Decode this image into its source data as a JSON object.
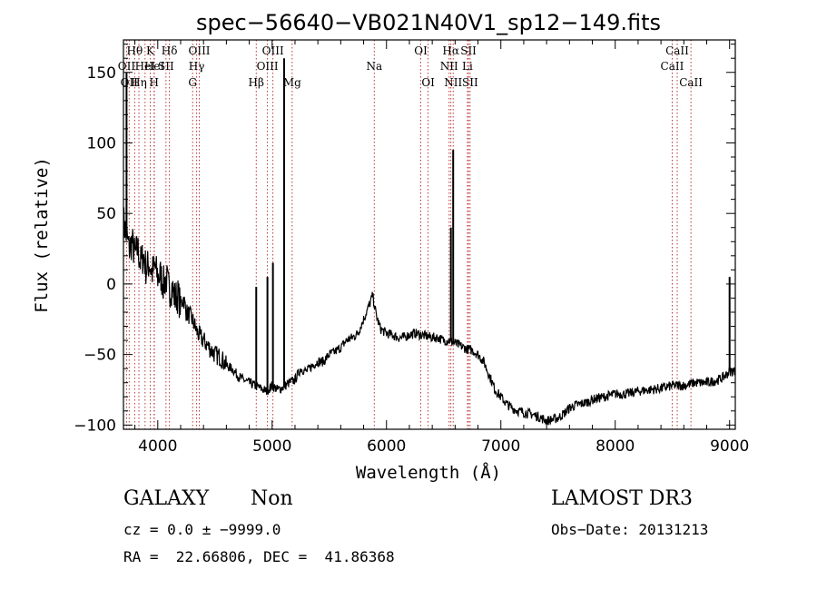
{
  "chart_data": {
    "type": "line",
    "title": "spec−56640−VB021N40V1_sp12−149.fits",
    "xlabel": "Wavelength (Å)",
    "ylabel": "Flux (relative)",
    "xlim": [
      3700,
      9050
    ],
    "ylim": [
      -103,
      173
    ],
    "xticks": [
      4000,
      5000,
      6000,
      7000,
      8000,
      9000
    ],
    "yticks": [
      -100,
      -50,
      0,
      50,
      100,
      150
    ],
    "xtick_labels": [
      "4000",
      "5000",
      "6000",
      "7000",
      "8000",
      "9000"
    ],
    "ytick_labels": [
      "−100",
      "−50",
      "0",
      "50",
      "100",
      "150"
    ],
    "grid": false,
    "spectrum": {
      "x": [
        3700,
        3725,
        3750,
        3775,
        3800,
        3825,
        3850,
        3875,
        3900,
        3925,
        3950,
        3975,
        4000,
        4025,
        4050,
        4075,
        4100,
        4125,
        4150,
        4175,
        4200,
        4225,
        4250,
        4275,
        4300,
        4325,
        4350,
        4375,
        4400,
        4450,
        4500,
        4550,
        4600,
        4650,
        4700,
        4750,
        4800,
        4850,
        4900,
        4950,
        5000,
        5050,
        5100,
        5150,
        5200,
        5250,
        5300,
        5350,
        5400,
        5450,
        5500,
        5550,
        5600,
        5650,
        5700,
        5750,
        5800,
        5850,
        5880,
        5900,
        5920,
        5950,
        6000,
        6050,
        6100,
        6150,
        6200,
        6250,
        6300,
        6350,
        6400,
        6450,
        6500,
        6550,
        6600,
        6650,
        6700,
        6750,
        6800,
        6850,
        6900,
        6950,
        7000,
        7050,
        7100,
        7150,
        7200,
        7250,
        7300,
        7350,
        7400,
        7450,
        7500,
        7550,
        7600,
        7650,
        7700,
        7750,
        7800,
        7900,
        8000,
        8100,
        8200,
        8300,
        8400,
        8500,
        8600,
        8700,
        8800,
        8900,
        8950,
        9000,
        9050
      ],
      "y": [
        45,
        35,
        25,
        30,
        20,
        25,
        15,
        20,
        10,
        15,
        8,
        12,
        5,
        6,
        0,
        4,
        -5,
        -2,
        -10,
        -8,
        -15,
        -10,
        -20,
        -22,
        -25,
        -30,
        -35,
        -38,
        -40,
        -45,
        -50,
        -52,
        -58,
        -60,
        -65,
        -68,
        -70,
        -72,
        -74,
        -76,
        -72,
        -75,
        -73,
        -70,
        -68,
        -60,
        -62,
        -58,
        -55,
        -55,
        -50,
        -48,
        -45,
        -40,
        -38,
        -35,
        -25,
        -15,
        -8,
        -18,
        -25,
        -32,
        -35,
        -36,
        -38,
        -38,
        -36,
        -35,
        -36,
        -37,
        -38,
        -38,
        -40,
        -40,
        -42,
        -44,
        -46,
        -47,
        -50,
        -55,
        -65,
        -75,
        -80,
        -85,
        -88,
        -90,
        -91,
        -92,
        -93,
        -95,
        -97,
        -96,
        -95,
        -92,
        -88,
        -86,
        -85,
        -84,
        -82,
        -80,
        -78,
        -78,
        -76,
        -75,
        -74,
        -72,
        -72,
        -70,
        -70,
        -68,
        -66,
        -62,
        -62
      ]
    },
    "emission_spikes": [
      {
        "x": 3727,
        "y": 150
      },
      {
        "x": 4861,
        "y": -2
      },
      {
        "x": 4959,
        "y": 5
      },
      {
        "x": 5007,
        "y": 15
      },
      {
        "x": 5105,
        "y": 160
      },
      {
        "x": 6563,
        "y": 40
      },
      {
        "x": 6583,
        "y": 95
      },
      {
        "x": 9000,
        "y": 5
      }
    ],
    "line_markers": [
      {
        "label": "OII",
        "x": 3727,
        "row": 2
      },
      {
        "label": "OII",
        "x": 3750,
        "row": 3
      },
      {
        "label": "Hθ",
        "x": 3798,
        "row": 1
      },
      {
        "label": "Hη",
        "x": 3835,
        "row": 3
      },
      {
        "label": "HeI",
        "x": 3889,
        "row": 2
      },
      {
        "label": "K",
        "x": 3934,
        "row": 1
      },
      {
        "label": "HeI",
        "x": 3970,
        "row": 2
      },
      {
        "label": "H",
        "x": 3968,
        "row": 3
      },
      {
        "label": "Hδ",
        "x": 4102,
        "row": 1
      },
      {
        "label": "SII",
        "x": 4072,
        "row": 2
      },
      {
        "label": "OIII",
        "x": 4363,
        "row": 1
      },
      {
        "label": "Hγ",
        "x": 4340,
        "row": 2
      },
      {
        "label": "G",
        "x": 4305,
        "row": 3
      },
      {
        "label": "Hβ",
        "x": 4861,
        "row": 3
      },
      {
        "label": "OIII",
        "x": 4959,
        "row": 2
      },
      {
        "label": "OIII",
        "x": 5007,
        "row": 1
      },
      {
        "label": "Mg",
        "x": 5175,
        "row": 3
      },
      {
        "label": "Na",
        "x": 5893,
        "row": 2
      },
      {
        "label": "OI",
        "x": 6300,
        "row": 1
      },
      {
        "label": "OI",
        "x": 6364,
        "row": 3
      },
      {
        "label": "Hα",
        "x": 6563,
        "row": 1
      },
      {
        "label": "NII",
        "x": 6548,
        "row": 2
      },
      {
        "label": "NII",
        "x": 6583,
        "row": 3
      },
      {
        "label": "SII",
        "x": 6717,
        "row": 1
      },
      {
        "label": "Li",
        "x": 6708,
        "row": 2
      },
      {
        "label": "SII",
        "x": 6731,
        "row": 3
      },
      {
        "label": "CaII",
        "x": 8498,
        "row": 2
      },
      {
        "label": "CaII",
        "x": 8542,
        "row": 1
      },
      {
        "label": "CaII",
        "x": 8662,
        "row": 3
      }
    ]
  },
  "info": {
    "object_class": "GALAXY",
    "subclass": "Non",
    "survey": "LAMOST DR3",
    "cz_line": "cz = 0.0 ± −9999.0",
    "obs_date_line": "Obs−Date: 20131213",
    "coord_line": "RA =  22.66806, DEC =  41.86368"
  }
}
